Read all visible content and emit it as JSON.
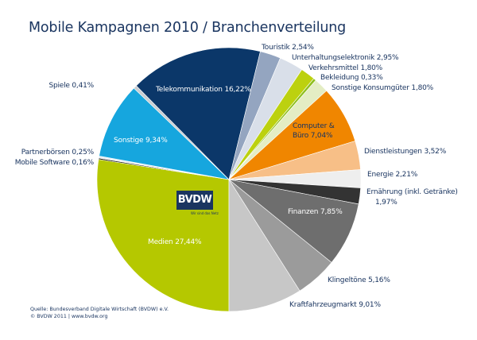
{
  "header": {
    "title": "Mobile Kampagnen 2010 / Branchenverteilung"
  },
  "logo": {
    "text": "BVDW",
    "tagline": "Wir sind das Netz"
  },
  "footer": {
    "source": "Quelle: Bundesverband Digitale Wirtschaft (BVDW) e.V.",
    "copyright": "© BVDW 2011 | www.bvdw.org"
  },
  "chart_data": {
    "type": "pie",
    "title": "Mobile Kampagnen 2010 / Branchenverteilung",
    "start_angle_deg": 180,
    "direction": "clockwise",
    "unit": "%",
    "slices": [
      {
        "label": "Medien",
        "value": 27.44,
        "display": "Medien 27,44%",
        "color": "#b5c800"
      },
      {
        "label": "Mobile Software",
        "value": 0.16,
        "display": "Mobile Software 0,16%",
        "color": "#1a1a1a"
      },
      {
        "label": "Partnerbörsen",
        "value": 0.25,
        "display": "Partnerbörsen 0,25%",
        "color": "#e8eef2"
      },
      {
        "label": "Sonstige",
        "value": 9.34,
        "display": "Sonstige 9,34%",
        "color": "#16a6de"
      },
      {
        "label": "Spiele",
        "value": 0.41,
        "display": "Spiele 0,41%",
        "color": "#c9cdd1"
      },
      {
        "label": "Telekommunikation",
        "value": 16.22,
        "display": "Telekommunikation 16,22%",
        "color": "#0b3769"
      },
      {
        "label": "Touristik",
        "value": 2.54,
        "display": "Touristik 2,54%",
        "color": "#94a5c0"
      },
      {
        "label": "Unterhaltungselektronik",
        "value": 2.95,
        "display": "Unterhaltungselektronik 2,95%",
        "color": "#d9dfe9"
      },
      {
        "label": "Verkehrsmittel",
        "value": 1.8,
        "display": "Verkehrsmittel 1,80%",
        "color": "#bcd10f"
      },
      {
        "label": "Bekleidung",
        "value": 0.33,
        "display": "Bekleidung 0,33%",
        "color": "#8fbf1e"
      },
      {
        "label": "Sonstige Konsumgüter",
        "value": 1.8,
        "display": "Sonstige Konsumgüter 1,80%",
        "color": "#e4edc4"
      },
      {
        "label": "Computer & Büro",
        "value": 7.04,
        "display": "Computer & Büro 7,04%",
        "color": "#f08600"
      },
      {
        "label": "Dienstleistungen",
        "value": 3.52,
        "display": "Dienstleistungen 3,52%",
        "color": "#f7bf87"
      },
      {
        "label": "Energie",
        "value": 2.21,
        "display": "Energie 2,21%",
        "color": "#eeeeee"
      },
      {
        "label": "Ernährung (inkl. Getränke)",
        "value": 1.97,
        "display": "Ernährung (inkl. Getränke) 1,97%",
        "color": "#333333"
      },
      {
        "label": "Finanzen",
        "value": 7.85,
        "display": "Finanzen 7,85%",
        "color": "#6e6e6e"
      },
      {
        "label": "Klingeltöne",
        "value": 5.16,
        "display": "Klingeltöne 5,16%",
        "color": "#9b9b9b"
      },
      {
        "label": "Kraftfahrzeugmarkt",
        "value": 9.01,
        "display": "Kraftfahrzeugmarkt 9,01%",
        "color": "#c7c7c7"
      }
    ],
    "legend": "none (direct labels)"
  },
  "labels": {
    "medien": "Medien 27,44%",
    "mobile_software": "Mobile Software 0,16%",
    "partnerboersen": "Partnerbörsen 0,25%",
    "sonstige": "Sonstige 9,34%",
    "spiele": "Spiele 0,41%",
    "telekom": "Telekommunikation 16,22%",
    "touristik": "Touristik 2,54%",
    "unterhaltung": "Unterhaltungselektronik 2,95%",
    "verkehrsmittel": "Verkehrsmittel 1,80%",
    "bekleidung": "Bekleidung 0,33%",
    "konsumgueter": "Sonstige Konsumgüter 1,80%",
    "computer_1": "Computer &",
    "computer_2": "Büro 7,04%",
    "dienstleistungen": "Dienstleistungen 3,52%",
    "energie": "Energie 2,21%",
    "ernaehrung_1": "Ernährung (inkl. Getränke)",
    "ernaehrung_2": "1,97%",
    "finanzen": "Finanzen 7,85%",
    "klingeltoene": "Klingeltöne 5,16%",
    "kfz": "Kraftfahrzeugmarkt 9,01%"
  }
}
